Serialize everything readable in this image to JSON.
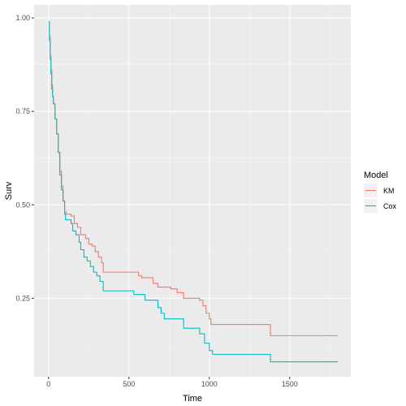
{
  "chart_data": {
    "type": "line",
    "title": "",
    "xlabel": "Time",
    "ylabel": "Surv",
    "xlim": [
      -90,
      1880
    ],
    "ylim": [
      0.04,
      1.035
    ],
    "x_ticks": [
      0,
      500,
      1000,
      1500
    ],
    "x_tick_labels": [
      "0",
      "500",
      "1000",
      "1500"
    ],
    "y_ticks": [
      0.25,
      0.5,
      0.75,
      1.0
    ],
    "y_tick_labels": [
      "0.25",
      "0.50",
      "0.75",
      "1.00"
    ],
    "grid": true,
    "legend": {
      "title": "Model",
      "position": "right"
    },
    "series": [
      {
        "name": "KM",
        "color": "#F8766D",
        "step": true,
        "points": [
          [
            0,
            0.99
          ],
          [
            5,
            0.95
          ],
          [
            10,
            0.9
          ],
          [
            15,
            0.86
          ],
          [
            20,
            0.82
          ],
          [
            25,
            0.79
          ],
          [
            30,
            0.77
          ],
          [
            40,
            0.73
          ],
          [
            50,
            0.69
          ],
          [
            60,
            0.64
          ],
          [
            70,
            0.59
          ],
          [
            80,
            0.55
          ],
          [
            90,
            0.51
          ],
          [
            100,
            0.48
          ],
          [
            110,
            0.475
          ],
          [
            140,
            0.47
          ],
          [
            160,
            0.45
          ],
          [
            180,
            0.44
          ],
          [
            200,
            0.42
          ],
          [
            230,
            0.41
          ],
          [
            250,
            0.395
          ],
          [
            270,
            0.39
          ],
          [
            290,
            0.375
          ],
          [
            310,
            0.36
          ],
          [
            330,
            0.345
          ],
          [
            340,
            0.32
          ],
          [
            545,
            0.32
          ],
          [
            560,
            0.31
          ],
          [
            580,
            0.305
          ],
          [
            650,
            0.29
          ],
          [
            680,
            0.28
          ],
          [
            760,
            0.275
          ],
          [
            800,
            0.265
          ],
          [
            840,
            0.25
          ],
          [
            940,
            0.245
          ],
          [
            960,
            0.23
          ],
          [
            980,
            0.21
          ],
          [
            1000,
            0.195
          ],
          [
            1010,
            0.18
          ],
          [
            1330,
            0.18
          ],
          [
            1380,
            0.15
          ],
          [
            1800,
            0.15
          ]
        ]
      },
      {
        "name": "Cox",
        "color": "#00BFC4",
        "step": true,
        "points": [
          [
            0,
            0.99
          ],
          [
            5,
            0.94
          ],
          [
            10,
            0.89
          ],
          [
            15,
            0.85
          ],
          [
            20,
            0.81
          ],
          [
            25,
            0.79
          ],
          [
            30,
            0.77
          ],
          [
            40,
            0.73
          ],
          [
            50,
            0.69
          ],
          [
            60,
            0.64
          ],
          [
            70,
            0.58
          ],
          [
            80,
            0.54
          ],
          [
            90,
            0.51
          ],
          [
            100,
            0.475
          ],
          [
            105,
            0.46
          ],
          [
            140,
            0.45
          ],
          [
            150,
            0.43
          ],
          [
            170,
            0.42
          ],
          [
            190,
            0.4
          ],
          [
            200,
            0.38
          ],
          [
            220,
            0.36
          ],
          [
            240,
            0.35
          ],
          [
            260,
            0.335
          ],
          [
            280,
            0.32
          ],
          [
            300,
            0.31
          ],
          [
            320,
            0.295
          ],
          [
            340,
            0.27
          ],
          [
            530,
            0.26
          ],
          [
            600,
            0.245
          ],
          [
            680,
            0.225
          ],
          [
            700,
            0.21
          ],
          [
            720,
            0.195
          ],
          [
            840,
            0.17
          ],
          [
            940,
            0.155
          ],
          [
            970,
            0.13
          ],
          [
            1000,
            0.11
          ],
          [
            1020,
            0.1
          ],
          [
            1310,
            0.1
          ],
          [
            1380,
            0.08
          ],
          [
            1800,
            0.08
          ]
        ]
      }
    ]
  }
}
